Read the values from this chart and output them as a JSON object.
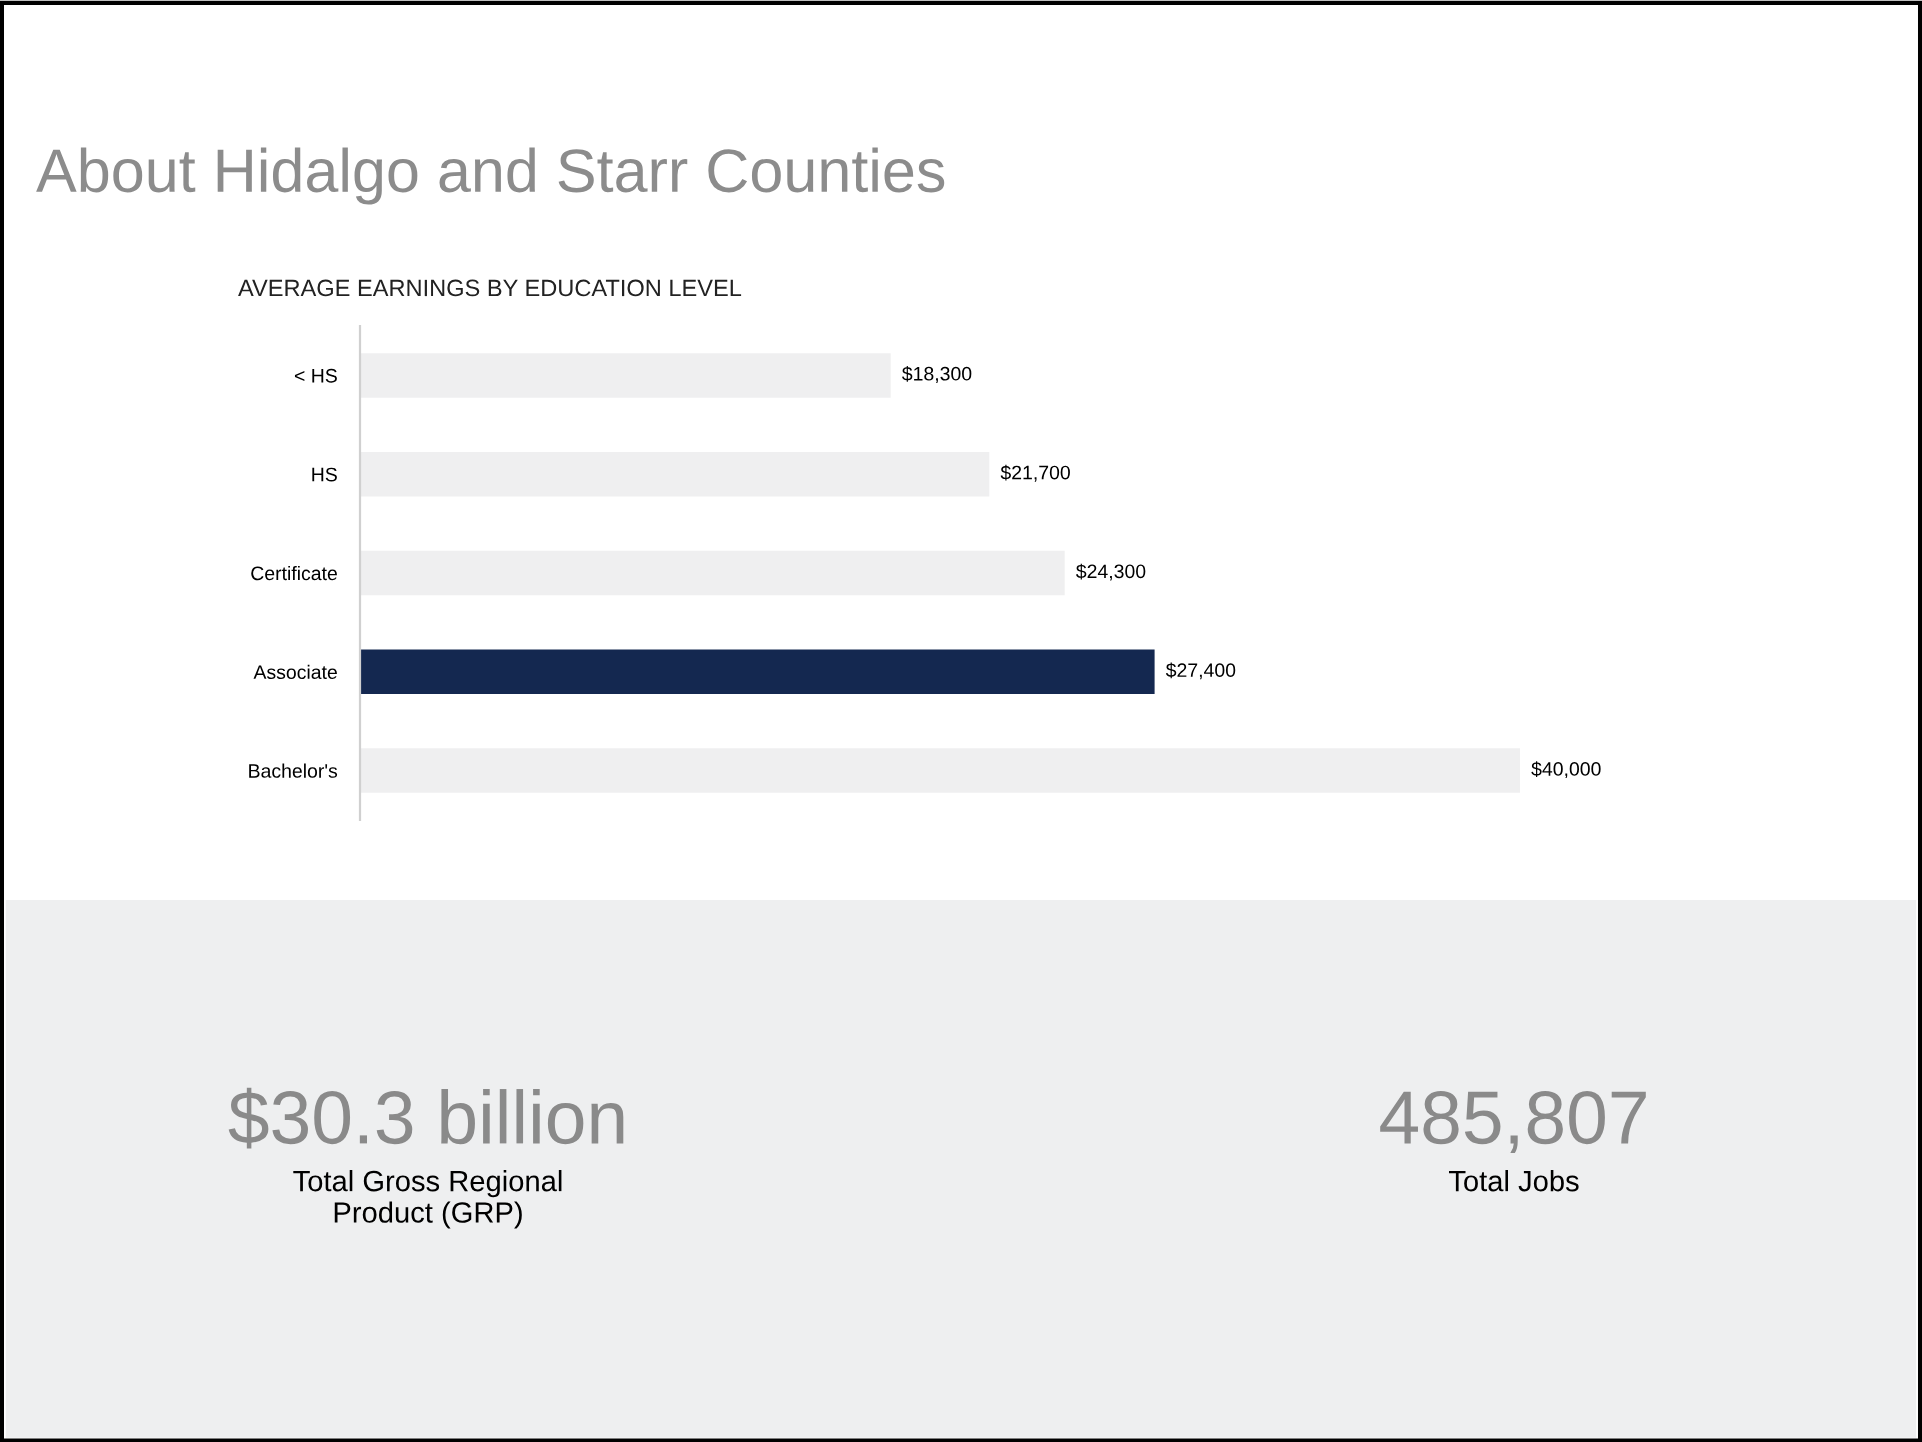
{
  "chart_data": [
    {
      "type": "bar",
      "orientation": "horizontal",
      "title": "About Hidalgo and Starr Counties",
      "subtitle": "AVERAGE EARNINGS BY EDUCATION LEVEL",
      "categories": [
        "< HS",
        "HS",
        "Certificate",
        "Associate",
        "Bachelor's"
      ],
      "values": [
        18300,
        21700,
        24300,
        27400,
        40000
      ],
      "colors": [
        "#efeff0",
        "#efeff0",
        "#efeff0",
        "#142850",
        "#efeff0"
      ],
      "value_labels": [
        "$18,300",
        "$21,700",
        "$24,300",
        "$27,400",
        "$40,000"
      ],
      "tick_labels": "y",
      "grid": false
    },
    {
      "type": "other",
      "annotations": [
        "$30.3 billion",
        "Total Gross Regional\nProduct (GRP)",
        "485,807",
        "Total Jobs"
      ]
    }
  ]
}
